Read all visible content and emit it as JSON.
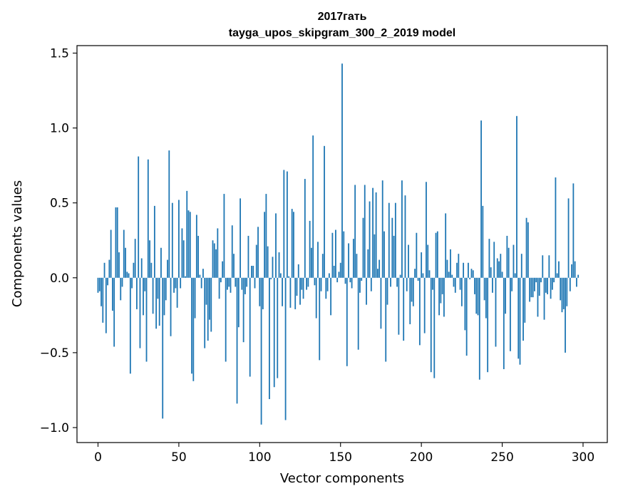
{
  "chart_data": {
    "type": "bar",
    "title_line1": "2017гать",
    "title_line2": "tayga_upos_skipgram_300_2_2019 model",
    "xlabel": "Vector components",
    "ylabel": "Components values",
    "xlim": [
      -13,
      315
    ],
    "ylim": [
      -1.1,
      1.55
    ],
    "x_ticks": [
      0,
      50,
      100,
      150,
      200,
      250,
      300
    ],
    "x_tick_labels": [
      "0",
      "50",
      "100",
      "150",
      "200",
      "250",
      "300"
    ],
    "y_ticks": [
      -1.0,
      -0.5,
      0.0,
      0.5,
      1.0,
      1.5
    ],
    "y_tick_labels": [
      "−1.0",
      "−0.5",
      "0.0",
      "0.5",
      "1.0",
      "1.5"
    ],
    "bar_color": "#1f77b4",
    "grid": false,
    "values": [
      -0.1,
      -0.09,
      -0.19,
      -0.3,
      0.1,
      -0.37,
      -0.05,
      0.12,
      0.32,
      -0.22,
      -0.46,
      0.47,
      0.47,
      0.17,
      -0.15,
      -0.06,
      0.32,
      0.2,
      0.04,
      0.03,
      -0.64,
      -0.07,
      0.1,
      0.26,
      -0.21,
      0.81,
      -0.47,
      0.13,
      -0.25,
      -0.09,
      -0.56,
      0.79,
      0.25,
      0.1,
      -0.24,
      0.48,
      -0.34,
      -0.14,
      -0.32,
      0.2,
      -0.94,
      -0.25,
      -0.15,
      0.12,
      0.85,
      -0.39,
      0.5,
      -0.1,
      -0.07,
      -0.2,
      0.52,
      -0.07,
      0.33,
      0.25,
      0.01,
      0.58,
      0.45,
      0.44,
      -0.64,
      -0.69,
      -0.27,
      0.42,
      0.28,
      0.02,
      -0.07,
      0.06,
      -0.47,
      -0.18,
      -0.42,
      -0.28,
      -0.36,
      0.25,
      0.23,
      0.19,
      0.33,
      -0.14,
      -0.03,
      0.11,
      0.56,
      -0.56,
      -0.08,
      -0.06,
      -0.1,
      0.35,
      0.16,
      -0.06,
      -0.84,
      -0.33,
      0.53,
      -0.08,
      -0.43,
      -0.11,
      -0.06,
      0.28,
      -0.66,
      0.08,
      0.08,
      -0.07,
      0.22,
      0.34,
      -0.19,
      -0.98,
      -0.21,
      0.44,
      0.56,
      0.21,
      -0.81,
      -0.01,
      0.14,
      -0.73,
      0.43,
      -0.67,
      0.17,
      0.03,
      -0.19,
      0.72,
      -0.95,
      0.71,
      0.01,
      -0.2,
      0.46,
      0.44,
      -0.21,
      -0.12,
      0.09,
      -0.18,
      -0.08,
      -0.14,
      0.66,
      -0.08,
      -0.06,
      0.38,
      0.2,
      0.95,
      -0.05,
      -0.27,
      0.24,
      -0.55,
      -0.09,
      0.16,
      0.88,
      -0.14,
      -0.09,
      0.03,
      -0.25,
      0.3,
      0.08,
      0.32,
      -0.03,
      0.04,
      0.1,
      1.43,
      0.31,
      -0.04,
      -0.59,
      0.23,
      -0.03,
      -0.07,
      0.26,
      0.62,
      0.16,
      -0.48,
      -0.1,
      -0.02,
      0.4,
      0.62,
      -0.18,
      0.19,
      0.51,
      -0.09,
      0.6,
      0.29,
      0.57,
      0.06,
      0.12,
      -0.34,
      0.65,
      0.31,
      -0.56,
      -0.18,
      0.5,
      -0.06,
      0.4,
      0.28,
      0.5,
      -0.06,
      -0.38,
      0.02,
      0.65,
      -0.42,
      0.55,
      -0.09,
      0.22,
      -0.31,
      -0.16,
      -0.19,
      0.06,
      0.3,
      -0.02,
      -0.45,
      0.17,
      0.03,
      -0.37,
      0.64,
      0.22,
      0.05,
      -0.63,
      -0.08,
      -0.67,
      0.3,
      0.31,
      -0.25,
      -0.17,
      -0.11,
      -0.26,
      0.43,
      0.12,
      0.04,
      0.19,
      0.02,
      -0.06,
      -0.1,
      0.1,
      0.16,
      -0.08,
      -0.19,
      0.1,
      -0.35,
      -0.52,
      0.1,
      -0.01,
      0.06,
      0.05,
      -0.11,
      -0.24,
      -0.25,
      -0.68,
      1.05,
      0.48,
      -0.15,
      -0.27,
      -0.63,
      0.26,
      0.07,
      -0.1,
      0.24,
      -0.46,
      0.13,
      0.11,
      0.16,
      0.04,
      -0.61,
      -0.24,
      0.28,
      0.2,
      -0.49,
      -0.09,
      0.22,
      0.03,
      1.08,
      -0.54,
      -0.58,
      0.16,
      -0.42,
      -0.3,
      0.4,
      0.37,
      -0.16,
      -0.13,
      -0.13,
      -0.09,
      -0.03,
      -0.26,
      -0.12,
      -0.03,
      0.15,
      -0.28,
      -0.1,
      -0.11,
      0.15,
      -0.14,
      -0.08,
      -0.03,
      0.67,
      0.03,
      0.11,
      -0.15,
      -0.23,
      -0.21,
      -0.5,
      -0.19,
      0.53,
      -0.09,
      0.09,
      0.63,
      0.11,
      -0.06,
      0.02
    ]
  }
}
